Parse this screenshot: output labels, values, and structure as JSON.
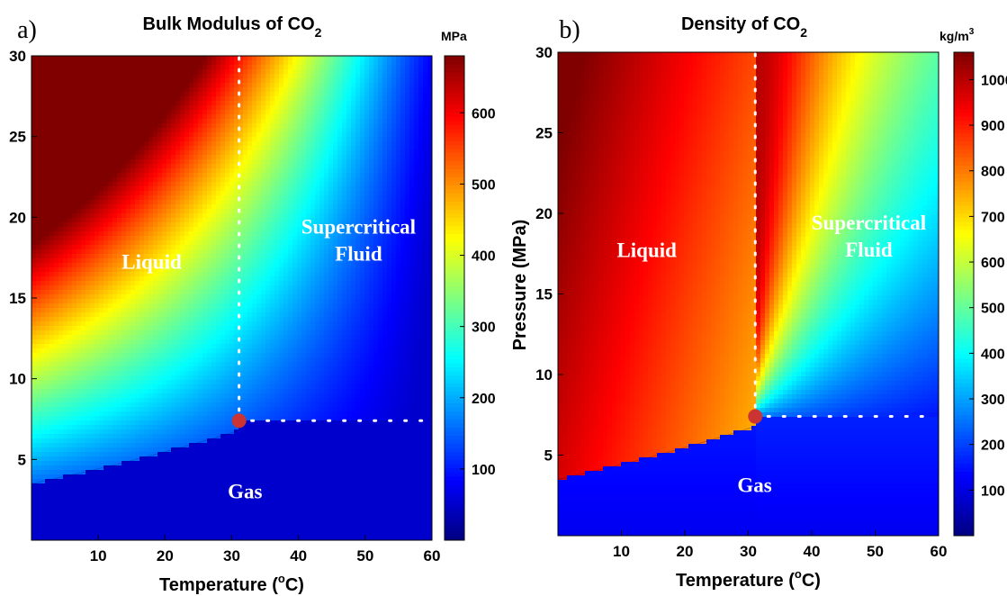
{
  "chart_data": [
    {
      "type": "heatmap",
      "panel": "a)",
      "title": "Bulk Modulus of CO",
      "title_subscript": "2",
      "xlabel": "Temperature (",
      "xlabel_sup": "o",
      "xlabel_end": "C)",
      "ylabel": "",
      "xlim": [
        0,
        60
      ],
      "ylim": [
        0,
        30
      ],
      "xticks": [
        10,
        20,
        30,
        40,
        50,
        60
      ],
      "yticks": [
        5,
        10,
        15,
        20,
        25,
        30
      ],
      "colorbar": {
        "unit": "MPa",
        "unit_sup": "",
        "range": [
          0,
          680
        ],
        "ticks": [
          100,
          200,
          300,
          400,
          500,
          600
        ]
      },
      "critical_point": {
        "x": 31.1,
        "y": 7.4
      },
      "saturation_curve": [
        [
          0,
          3.5
        ],
        [
          10,
          4.5
        ],
        [
          20,
          5.7
        ],
        [
          31.1,
          7.4
        ]
      ],
      "regions": [
        {
          "label": "Liquid",
          "lines": [
            "Liquid"
          ],
          "x": 18,
          "y": 16.8
        },
        {
          "label": "Supercritical Fluid",
          "lines": [
            "Supercritical",
            "Fluid"
          ],
          "x": 49,
          "y": 19
        },
        {
          "label": "Gas",
          "lines": [
            "Gas"
          ],
          "x": 32,
          "y": 2.6
        }
      ],
      "colormap": "jet"
    },
    {
      "type": "heatmap",
      "panel": "b)",
      "title": "Density of CO",
      "title_subscript": "2",
      "xlabel": "Temperature (",
      "xlabel_sup": "o",
      "xlabel_end": "C)",
      "ylabel": "Pressure (MPa)",
      "xlim": [
        0,
        60
      ],
      "ylim": [
        0,
        30
      ],
      "xticks": [
        10,
        20,
        30,
        40,
        50,
        60
      ],
      "yticks": [
        5,
        10,
        15,
        20,
        25,
        30
      ],
      "colorbar": {
        "unit": "kg/m",
        "unit_sup": "3",
        "range": [
          0,
          1060
        ],
        "ticks": [
          100,
          200,
          300,
          400,
          500,
          600,
          700,
          800,
          900,
          1000
        ]
      },
      "critical_point": {
        "x": 31.1,
        "y": 7.4
      },
      "saturation_curve": [
        [
          0,
          3.5
        ],
        [
          10,
          4.5
        ],
        [
          20,
          5.7
        ],
        [
          31.1,
          7.4
        ]
      ],
      "regions": [
        {
          "label": "Liquid",
          "lines": [
            "Liquid"
          ],
          "x": 14,
          "y": 17.3
        },
        {
          "label": "Supercritical Fluid",
          "lines": [
            "Supercritical",
            "Fluid"
          ],
          "x": 49,
          "y": 19
        },
        {
          "label": "Gas",
          "lines": [
            "Gas"
          ],
          "x": 31,
          "y": 2.7
        }
      ],
      "colormap": "jet"
    }
  ],
  "colors": {
    "critical_point": "#cc3333",
    "dotted_lines": "#ffffff",
    "region_text": "#ffffff"
  }
}
